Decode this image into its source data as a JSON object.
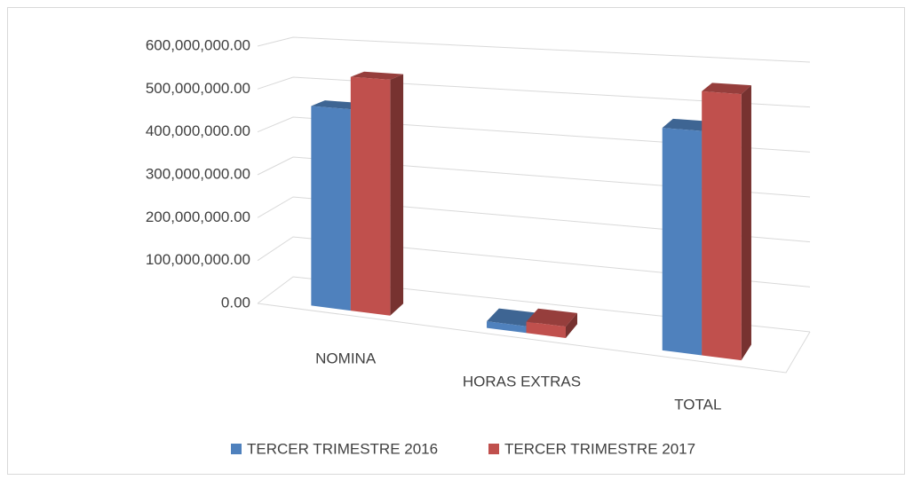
{
  "chart_data": {
    "type": "bar3d",
    "categories": [
      "NOMINA",
      "HORAS EXTRAS",
      "TOTAL"
    ],
    "series": [
      {
        "name": "TERCER TRIMESTRE 2016",
        "color": "#4f81bd",
        "values": [
          465000000,
          15000000,
          480000000
        ]
      },
      {
        "name": "TERCER TRIMESTRE 2017",
        "color": "#c0504d",
        "values": [
          540000000,
          25000000,
          565000000
        ]
      }
    ],
    "ylim": [
      0,
      600000000
    ],
    "yticks": [
      {
        "value": 0,
        "label": "0.00"
      },
      {
        "value": 100000000,
        "label": "100,000,000.00"
      },
      {
        "value": 200000000,
        "label": "200,000,000.00"
      },
      {
        "value": 300000000,
        "label": "300,000,000.00"
      },
      {
        "value": 400000000,
        "label": "400,000,000.00"
      },
      {
        "value": 500000000,
        "label": "500,000,000.00"
      },
      {
        "value": 600000000,
        "label": "600,000,000.00"
      }
    ],
    "grid": true,
    "legend": "bottom"
  }
}
